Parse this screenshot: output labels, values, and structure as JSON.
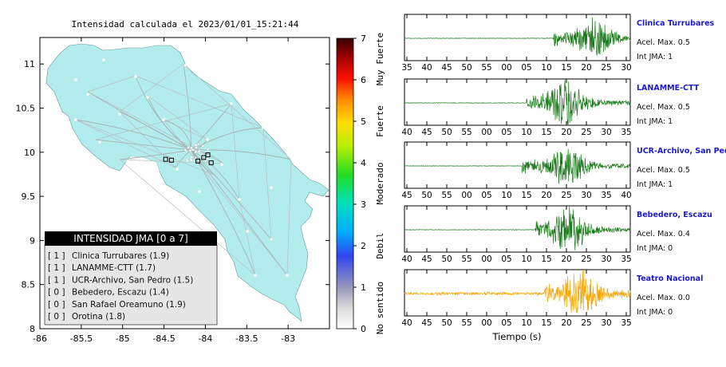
{
  "map": {
    "title": "Intensidad calculada el 2023/01/01_15:21:44",
    "xticks": [
      -86,
      -85.5,
      -85,
      -84.5,
      -84,
      -83.5,
      -83
    ],
    "yticks": [
      8,
      8.5,
      9,
      9.5,
      10,
      10.5,
      11
    ],
    "xlim": [
      -86,
      -82.5
    ],
    "ylim": [
      8,
      11.3
    ],
    "land_color": "#b3ecec",
    "stations": [
      {
        "lon": -84.48,
        "lat": 9.92
      },
      {
        "lon": -84.41,
        "lat": 9.91
      },
      {
        "lon": -84.09,
        "lat": 9.9
      },
      {
        "lon": -84.02,
        "lat": 9.94
      },
      {
        "lon": -83.97,
        "lat": 9.97
      },
      {
        "lon": -83.93,
        "lat": 9.88
      }
    ]
  },
  "legend": {
    "title": "INTENSIDAD JMA [0 a 7]",
    "entries": [
      {
        "level": "[ 1 ]",
        "name": "Clinica Turrubares (1.9)"
      },
      {
        "level": "[ 1 ]",
        "name": "LANAMME-CTT (1.7)"
      },
      {
        "level": "[ 1 ]",
        "name": "UCR-Archivo, San Pedro (1.5)"
      },
      {
        "level": "[ 0 ]",
        "name": "Bebedero, Escazu (1.4)"
      },
      {
        "level": "[ 0 ]",
        "name": "San Rafael Oreamuno (1.9)"
      },
      {
        "level": "[ 0 ]",
        "name": "Orotina (1.8)"
      }
    ]
  },
  "colorbar": {
    "ticks": [
      0,
      1,
      2,
      3,
      4,
      5,
      6,
      7
    ],
    "range": [
      0,
      7
    ],
    "words": [
      {
        "label": "No sentido",
        "value": 0.5
      },
      {
        "label": "Debil",
        "value": 2
      },
      {
        "label": "Moderado",
        "value": 3.5
      },
      {
        "label": "Fuerte",
        "value": 5
      },
      {
        "label": "Muy Fuerte",
        "value": 6.5
      }
    ]
  },
  "chart_data": {
    "type": "line",
    "xlabel": "Tiempo (s)",
    "series": [
      {
        "name": "Clinica Turrubares",
        "acel": "Acel. Max. 0.5",
        "int": "Int JMA: 1",
        "color": "#1a7a1a",
        "ticks": [
          "35",
          "40",
          "45",
          "50",
          "55",
          "00",
          "05",
          "10",
          "15",
          "20",
          "25",
          "30"
        ],
        "onset": 0.66,
        "peak": 0.84
      },
      {
        "name": "LANAMME-CTT",
        "acel": "Acel. Max. 0.5",
        "int": "Int JMA: 1",
        "color": "#1a7a1a",
        "ticks": [
          "40",
          "45",
          "50",
          "55",
          "00",
          "05",
          "10",
          "15",
          "20",
          "25",
          "30",
          "35"
        ],
        "onset": 0.54,
        "peak": 0.71
      },
      {
        "name": "UCR-Archivo, San Pedro",
        "acel": "Acel. Max. 0.5",
        "int": "Int JMA: 1",
        "color": "#1a7a1a",
        "ticks": [
          "45",
          "50",
          "55",
          "00",
          "05",
          "10",
          "15",
          "20",
          "25",
          "30",
          "35",
          "40"
        ],
        "onset": 0.52,
        "peak": 0.72
      },
      {
        "name": "Bebedero, Escazu",
        "acel": "Acel. Max. 0.4",
        "int": "Int JMA: 0",
        "color": "#1a7a1a",
        "ticks": [
          "40",
          "45",
          "50",
          "55",
          "00",
          "05",
          "10",
          "15",
          "20",
          "25",
          "30",
          "35"
        ],
        "onset": 0.58,
        "peak": 0.73
      },
      {
        "name": "Teatro Nacional",
        "acel": "Acel. Max. 0.0",
        "int": "Int JMA: 0",
        "color": "#f5a400",
        "ticks": [
          "40",
          "45",
          "50",
          "55",
          "00",
          "05",
          "10",
          "15",
          "20",
          "25",
          "30",
          "35"
        ],
        "onset": 0.62,
        "peak": 0.78
      }
    ]
  }
}
